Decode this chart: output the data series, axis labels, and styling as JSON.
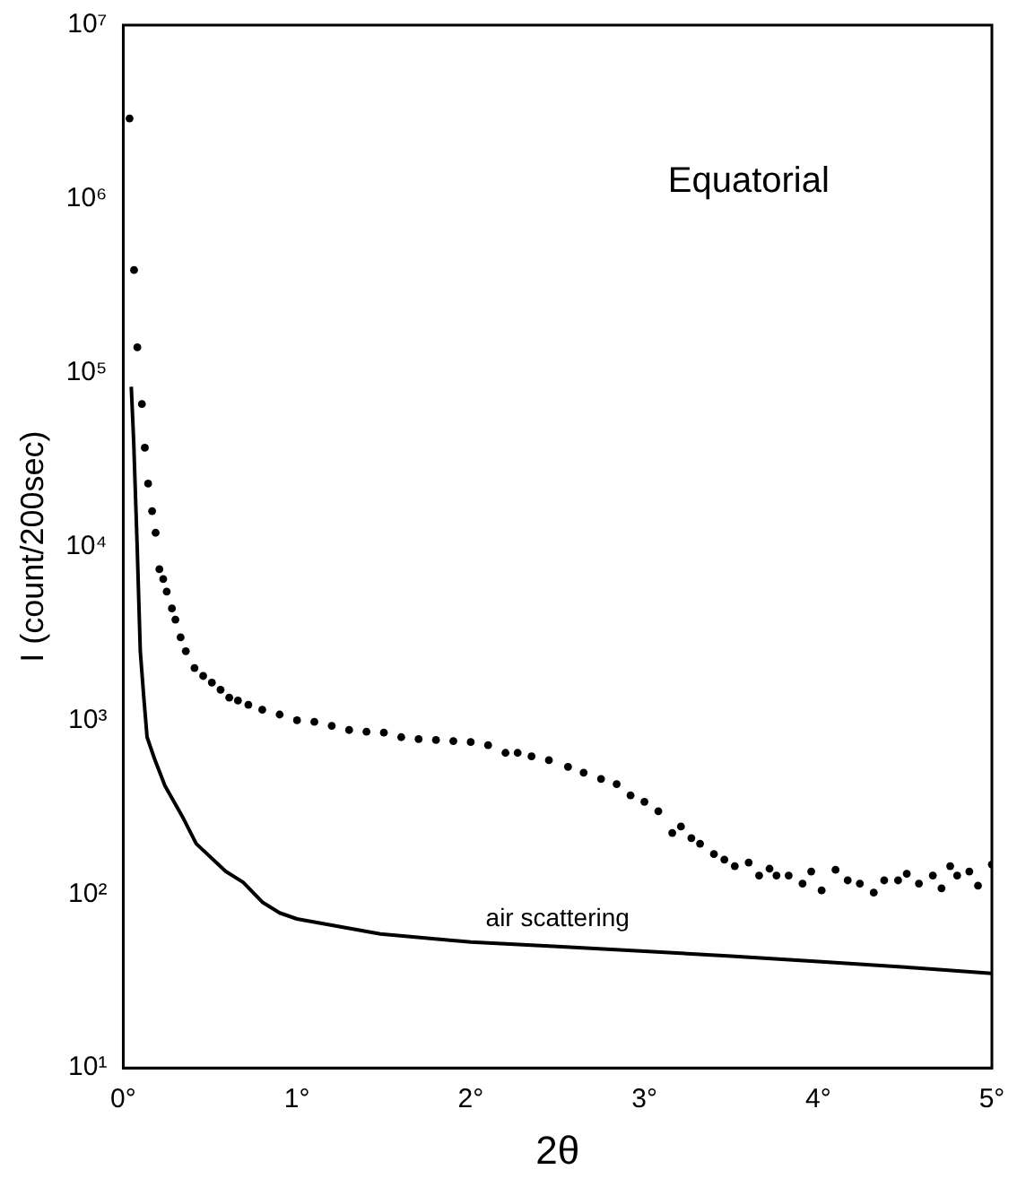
{
  "chart_data": {
    "type": "scatter",
    "xlabel": "2θ",
    "ylabel": "I (count/200sec)",
    "log": "y",
    "grid": false,
    "legend": false,
    "annotations": [
      "Equatorial"
    ],
    "xlim": [
      0,
      5
    ],
    "xticks": [
      {
        "value": 0,
        "label": "0°"
      },
      {
        "value": 1,
        "label": "1°"
      },
      {
        "value": 2,
        "label": "2°"
      },
      {
        "value": 3,
        "label": "3°"
      },
      {
        "value": 4,
        "label": "4°"
      },
      {
        "value": 5,
        "label": "5°"
      }
    ],
    "ylim": [
      10,
      10000000
    ],
    "yticks": [
      {
        "value": 10,
        "label": "10¹"
      },
      {
        "value": 100,
        "label": "10²"
      },
      {
        "value": 1000,
        "label": "10³"
      },
      {
        "value": 10000,
        "label": "10⁴"
      },
      {
        "value": 100000,
        "label": "10⁵"
      },
      {
        "value": 1000000,
        "label": "10⁶"
      },
      {
        "value": 10000000,
        "label": "10⁷"
      }
    ],
    "series": [
      {
        "color": "#000000",
        "marker": "circle",
        "x": [
          0.036,
          0.062,
          0.081,
          0.107,
          0.124,
          0.143,
          0.166,
          0.186,
          0.208,
          0.23,
          0.25,
          0.28,
          0.3,
          0.33,
          0.36,
          0.41,
          0.46,
          0.51,
          0.56,
          0.61,
          0.66,
          0.72,
          0.8,
          0.9,
          1.0,
          1.1,
          1.2,
          1.3,
          1.4,
          1.5,
          1.6,
          1.7,
          1.8,
          1.9,
          2.0,
          2.1,
          2.2,
          2.27,
          2.35,
          2.45,
          2.56,
          2.65,
          2.75,
          2.84,
          2.92,
          3.0,
          3.08,
          3.16,
          3.21,
          3.27,
          3.32,
          3.4,
          3.46,
          3.52,
          3.6,
          3.66,
          3.72,
          3.76,
          3.83,
          3.91,
          3.96,
          4.02,
          4.1,
          4.17,
          4.24,
          4.32,
          4.38,
          4.46,
          4.51,
          4.58,
          4.66,
          4.71,
          4.76,
          4.8,
          4.87,
          4.92,
          5.0
        ],
        "values": [
          2900000,
          390000,
          140000,
          66000,
          37000,
          23000,
          16000,
          12000,
          7400,
          6500,
          5500,
          4400,
          3800,
          3000,
          2500,
          2000,
          1800,
          1650,
          1500,
          1350,
          1300,
          1230,
          1150,
          1080,
          1000,
          980,
          930,
          880,
          860,
          850,
          800,
          780,
          770,
          760,
          750,
          720,
          650,
          650,
          620,
          590,
          540,
          500,
          460,
          430,
          370,
          340,
          300,
          225,
          245,
          210,
          195,
          170,
          158,
          145,
          152,
          128,
          140,
          128,
          128,
          115,
          135,
          105,
          138,
          120,
          115,
          102,
          120,
          120,
          131,
          115,
          128,
          108,
          145,
          128,
          135,
          112,
          148
        ]
      },
      {
        "type": "line",
        "name": "air scattering",
        "color": "#000000",
        "marker": "none",
        "x": [
          0.046,
          0.06,
          0.08,
          0.098,
          0.117,
          0.137,
          0.18,
          0.24,
          0.34,
          0.42,
          0.59,
          0.69,
          0.8,
          0.9,
          1.0,
          1.48,
          2.0,
          2.5,
          3.0,
          3.5,
          4.0,
          4.5,
          5.0
        ],
        "values": [
          83000,
          40000,
          10000,
          2500,
          1400,
          800,
          600,
          420,
          280,
          195,
          135,
          117,
          90,
          78,
          72,
          59,
          53,
          50,
          47,
          44,
          41,
          38,
          35
        ]
      }
    ]
  }
}
